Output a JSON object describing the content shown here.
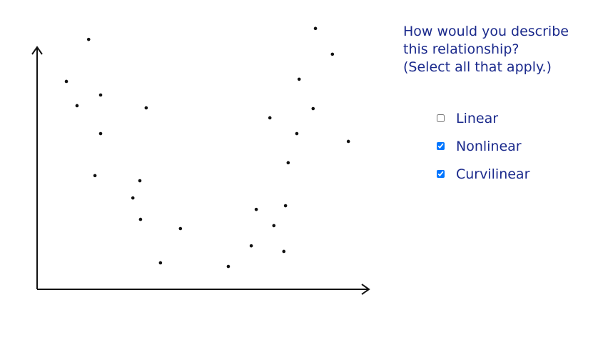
{
  "chart_data": {
    "type": "scatter",
    "color": "#111111",
    "x": [
      15.5,
      8.8,
      12.0,
      19.1,
      19.1,
      17.4,
      32.8,
      30.9,
      28.8,
      31.1,
      43.1,
      37.1,
      57.5,
      64.4,
      65.9,
      71.2,
      74.2,
      74.7,
      75.5,
      78.1,
      70.0,
      78.8,
      83.0,
      83.7,
      88.8,
      93.6
    ],
    "values": [
      102.9,
      85.6,
      75.6,
      80.0,
      64.1,
      46.8,
      74.7,
      44.7,
      37.6,
      28.8,
      25.0,
      10.9,
      9.4,
      17.9,
      32.9,
      26.2,
      15.6,
      34.4,
      52.1,
      64.1,
      70.6,
      86.5,
      74.4,
      107.4,
      96.8,
      60.9
    ],
    "xlim": [
      0,
      100
    ],
    "ylim": [
      0,
      110
    ]
  },
  "question": {
    "lines": [
      "How would you describe",
      "this relationship?",
      "(Select all that apply.)"
    ],
    "options": [
      {
        "label": "Linear",
        "checked": false
      },
      {
        "label": "Nonlinear",
        "checked": true
      },
      {
        "label": "Curvilinear",
        "checked": true
      }
    ]
  }
}
